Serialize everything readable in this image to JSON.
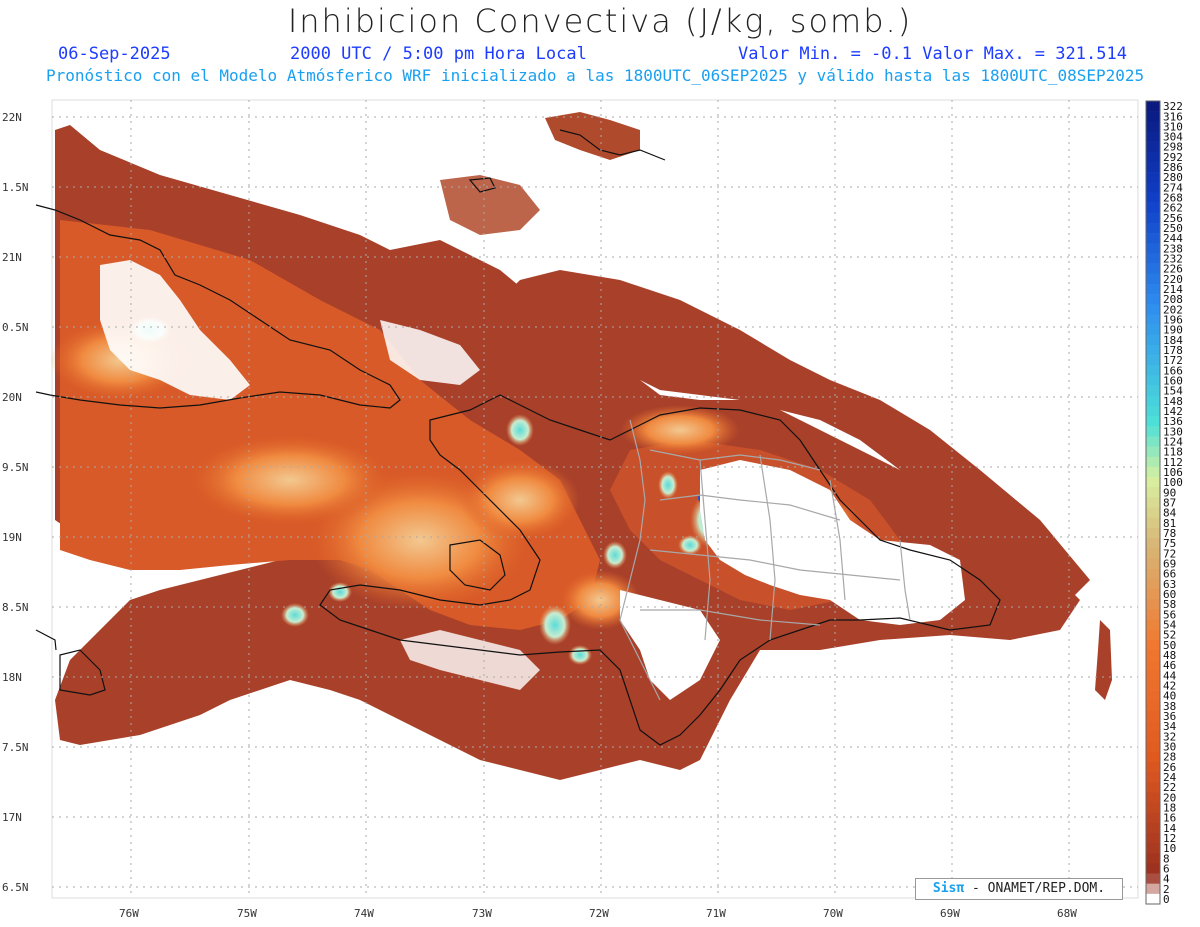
{
  "header": {
    "title": "Inhibicion Convectiva (J/kg, somb.)",
    "date": "06-Sep-2025",
    "time": "2000 UTC / 5:00 pm Hora Local",
    "minmax": "Valor Min. = -0.1  Valor Max. = 321.514",
    "forecast": "Pronóstico con el Modelo Atmósferico WRF inicializado a las 1800UTC_06SEP2025 y válido hasta las  1800UTC_08SEP2025"
  },
  "map": {
    "lat_labels": [
      "22N",
      "1.5N",
      "21N",
      "0.5N",
      "20N",
      "9.5N",
      "19N",
      "8.5N",
      "18N",
      "7.5N",
      "17N",
      "6.5N"
    ],
    "lon_labels": [
      "76W",
      "75W",
      "74W",
      "73W",
      "72W",
      "71W",
      "70W",
      "69W",
      "68W"
    ],
    "grid": true
  },
  "colorbar": {
    "labels": [
      "322",
      "316",
      "310",
      "304",
      "298",
      "292",
      "286",
      "280",
      "274",
      "268",
      "262",
      "256",
      "250",
      "244",
      "238",
      "232",
      "226",
      "220",
      "214",
      "208",
      "202",
      "196",
      "190",
      "184",
      "178",
      "172",
      "166",
      "160",
      "154",
      "148",
      "142",
      "136",
      "130",
      "124",
      "118",
      "112",
      "106",
      "100",
      "90",
      "87",
      "84",
      "81",
      "78",
      "75",
      "72",
      "69",
      "66",
      "63",
      "60",
      "58",
      "56",
      "54",
      "52",
      "50",
      "48",
      "46",
      "44",
      "42",
      "40",
      "38",
      "36",
      "34",
      "32",
      "30",
      "28",
      "26",
      "24",
      "22",
      "20",
      "18",
      "16",
      "14",
      "12",
      "10",
      "8",
      "6",
      "4",
      "2",
      "0"
    ],
    "colors": {
      "high": "#0a1a80",
      "mid_blue": "#2e8cf0",
      "cyan": "#4de0d8",
      "pale_green": "#d8f0a0",
      "tan": "#d8b878",
      "orange": "#f07830",
      "red_orange": "#e05a20",
      "dark_red": "#9a3020",
      "zero": "#ffffff"
    }
  },
  "credit": {
    "sis": "Sisπ",
    "org": " - ONAMET/REP.DOM."
  }
}
